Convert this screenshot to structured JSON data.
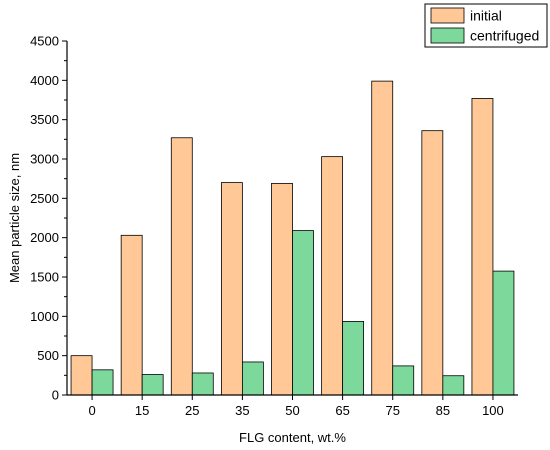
{
  "chart_data": {
    "type": "bar",
    "title": "",
    "xlabel": "FLG content, wt.%",
    "ylabel": "Mean particle size, nm",
    "categories": [
      "0",
      "15",
      "25",
      "35",
      "50",
      "65",
      "75",
      "85",
      "100"
    ],
    "series": [
      {
        "name": "initial",
        "color": "#FFC896",
        "values": [
          500,
          2030,
          3270,
          2700,
          2690,
          3030,
          3990,
          3360,
          3770
        ]
      },
      {
        "name": "centrifuged",
        "color": "#7DD89C",
        "values": [
          320,
          260,
          280,
          420,
          2090,
          935,
          370,
          245,
          1575
        ]
      }
    ],
    "ylim": [
      0,
      4500
    ],
    "yticks": [
      0,
      500,
      1000,
      1500,
      2000,
      2500,
      3000,
      3500,
      4000,
      4500
    ],
    "grid": false,
    "legend": "top-right"
  }
}
